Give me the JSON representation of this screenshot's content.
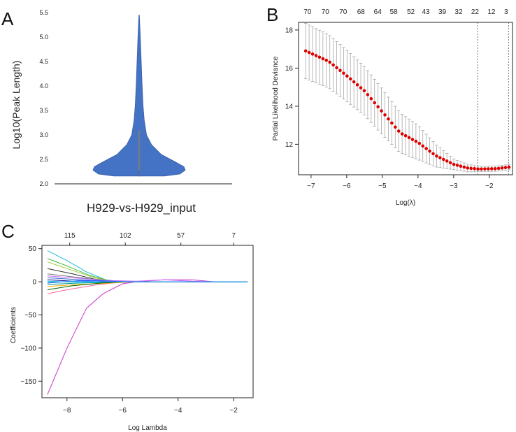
{
  "chart_data": [
    {
      "panel": "A",
      "type": "violin",
      "ylabel": "Log10(Peak Length)",
      "xlabel": "H929-vs-H929_input",
      "ylim": [
        2.0,
        5.5
      ],
      "yticks": [
        "2.0",
        "2.5",
        "3.0",
        "3.5",
        "4.0",
        "4.5",
        "5.0",
        "5.5"
      ],
      "fill_color": "#4472c4",
      "profile": [
        {
          "y": 2.16,
          "w": 0.55
        },
        {
          "y": 2.2,
          "w": 0.88
        },
        {
          "y": 2.28,
          "w": 1.0
        },
        {
          "y": 2.35,
          "w": 0.97
        },
        {
          "y": 2.45,
          "w": 0.78
        },
        {
          "y": 2.6,
          "w": 0.48
        },
        {
          "y": 2.8,
          "w": 0.27
        },
        {
          "y": 3.0,
          "w": 0.16
        },
        {
          "y": 3.3,
          "w": 0.11
        },
        {
          "y": 3.6,
          "w": 0.085
        },
        {
          "y": 4.0,
          "w": 0.065
        },
        {
          "y": 4.5,
          "w": 0.045
        },
        {
          "y": 5.0,
          "w": 0.025
        },
        {
          "y": 5.45,
          "w": 0.004
        }
      ],
      "box": {
        "low": 2.28,
        "high": 3.1
      }
    },
    {
      "panel": "B",
      "type": "errorbar",
      "xlabel": "Log(λ)",
      "ylabel": "Partial Likelihood Deviance",
      "xlim": [
        -7.35,
        -1.35
      ],
      "ylim": [
        10.4,
        18.4
      ],
      "xticks": [
        -7,
        -6,
        -5,
        -4,
        -3,
        -2
      ],
      "xtick_labels": [
        "−7",
        "−6",
        "−5",
        "−4",
        "−3",
        "−2"
      ],
      "yticks": [
        12,
        14,
        16,
        18
      ],
      "ytick_labels": [
        "12",
        "14",
        "16",
        "18"
      ],
      "top_counts": [
        "70",
        "70",
        "70",
        "68",
        "64",
        "58",
        "52",
        "43",
        "39",
        "32",
        "22",
        "12",
        "3"
      ],
      "top_positions": [
        -7.1,
        -6.6,
        -6.1,
        -5.6,
        -5.13,
        -4.68,
        -4.2,
        -3.78,
        -3.32,
        -2.86,
        -2.4,
        -1.94,
        -1.53
      ],
      "vlines": [
        -2.33,
        -1.46
      ],
      "x_range": [
        -7.15,
        -1.45
      ],
      "n_points": 60,
      "curve": [
        {
          "x": -7.15,
          "y": 16.9
        },
        {
          "x": -6.5,
          "y": 16.35
        },
        {
          "x": -6.0,
          "y": 15.6
        },
        {
          "x": -5.5,
          "y": 14.8
        },
        {
          "x": -5.0,
          "y": 13.7
        },
        {
          "x": -4.5,
          "y": 12.6
        },
        {
          "x": -4.0,
          "y": 12.1
        },
        {
          "x": -3.5,
          "y": 11.4
        },
        {
          "x": -3.0,
          "y": 10.95
        },
        {
          "x": -2.6,
          "y": 10.75
        },
        {
          "x": -2.3,
          "y": 10.7
        },
        {
          "x": -1.8,
          "y": 10.72
        },
        {
          "x": -1.45,
          "y": 10.8
        }
      ],
      "err_hi": [
        {
          "x": -7.15,
          "y": 1.45
        },
        {
          "x": -6.0,
          "y": 1.35
        },
        {
          "x": -5.0,
          "y": 1.2
        },
        {
          "x": -4.0,
          "y": 0.9
        },
        {
          "x": -3.0,
          "y": 0.28
        },
        {
          "x": -2.3,
          "y": 0.14
        },
        {
          "x": -1.45,
          "y": 0.14
        }
      ],
      "err_lo": [
        {
          "x": -7.15,
          "y": 1.45
        },
        {
          "x": -6.0,
          "y": 1.35
        },
        {
          "x": -5.0,
          "y": 1.2
        },
        {
          "x": -4.0,
          "y": 0.9
        },
        {
          "x": -3.0,
          "y": 0.28
        },
        {
          "x": -2.3,
          "y": 0.14
        },
        {
          "x": -1.45,
          "y": 0.14
        }
      ],
      "point_color": "#dd0000"
    },
    {
      "panel": "C",
      "type": "line",
      "xlabel": "Log Lambda",
      "ylabel": "Coefficients",
      "xlim": [
        -8.9,
        -1.3
      ],
      "ylim": [
        -175,
        55
      ],
      "xticks": [
        -8,
        -6,
        -4,
        -2
      ],
      "xtick_labels": [
        "−8",
        "−6",
        "−4",
        "−2"
      ],
      "yticks": [
        -150,
        -100,
        -50,
        0,
        50
      ],
      "ytick_labels": [
        "−150",
        "−100",
        "−50",
        "0",
        "50"
      ],
      "top_counts": [
        "115",
        "102",
        "57",
        "7"
      ],
      "top_positions": [
        -7.9,
        -5.9,
        -3.9,
        -2.0
      ],
      "series": [
        {
          "color": "#cc33cc",
          "points": [
            [
              -8.7,
              -170
            ],
            [
              -8.0,
              -100
            ],
            [
              -7.3,
              -40
            ],
            [
              -6.7,
              -18
            ],
            [
              -6.0,
              -3
            ],
            [
              -5.5,
              0
            ],
            [
              -4.5,
              3
            ],
            [
              -3.5,
              3
            ],
            [
              -2.7,
              0
            ],
            [
              -1.5,
              0
            ]
          ]
        },
        {
          "color": "#22bbdd",
          "points": [
            [
              -8.7,
              47
            ],
            [
              -8.0,
              32
            ],
            [
              -7.3,
              15
            ],
            [
              -6.6,
              3
            ],
            [
              -6.0,
              0
            ],
            [
              -1.5,
              0
            ]
          ]
        },
        {
          "color": "#44bb44",
          "points": [
            [
              -8.7,
              35
            ],
            [
              -8.0,
              24
            ],
            [
              -7.2,
              10
            ],
            [
              -6.5,
              2
            ],
            [
              -6.0,
              0
            ],
            [
              -1.5,
              0
            ]
          ]
        },
        {
          "color": "#99cc33",
          "points": [
            [
              -8.7,
              30
            ],
            [
              -8.0,
              20
            ],
            [
              -7.0,
              6
            ],
            [
              -6.3,
              0
            ],
            [
              -1.5,
              0
            ]
          ]
        },
        {
          "color": "#333333",
          "points": [
            [
              -8.7,
              20
            ],
            [
              -7.8,
              12
            ],
            [
              -7.0,
              4
            ],
            [
              -6.2,
              0
            ],
            [
              -1.5,
              0
            ]
          ]
        },
        {
          "color": "#777777",
          "points": [
            [
              -8.7,
              12
            ],
            [
              -7.5,
              6
            ],
            [
              -6.5,
              1
            ],
            [
              -6.0,
              0
            ],
            [
              -1.5,
              0
            ]
          ]
        },
        {
          "color": "#ff6699",
          "points": [
            [
              -8.7,
              -18
            ],
            [
              -8.0,
              -12
            ],
            [
              -7.0,
              -5
            ],
            [
              -6.0,
              0
            ],
            [
              -1.5,
              0
            ]
          ]
        },
        {
          "color": "#cc66ff",
          "points": [
            [
              -8.7,
              9
            ],
            [
              -7.5,
              5
            ],
            [
              -6.5,
              2
            ],
            [
              -5.5,
              1
            ],
            [
              -4.5,
              3
            ],
            [
              -3.5,
              1
            ],
            [
              -2.5,
              0
            ],
            [
              -1.5,
              0
            ]
          ]
        },
        {
          "color": "#ffaa00",
          "points": [
            [
              -8.7,
              -7
            ],
            [
              -7.5,
              -4
            ],
            [
              -6.5,
              -2
            ],
            [
              -5.5,
              0
            ],
            [
              -1.5,
              0
            ]
          ]
        },
        {
          "color": "#3366cc",
          "points": [
            [
              -8.7,
              6
            ],
            [
              -7.5,
              3
            ],
            [
              -6.5,
              1
            ],
            [
              -5.8,
              0
            ],
            [
              -1.5,
              0
            ]
          ]
        },
        {
          "color": "#009999",
          "points": [
            [
              -8.7,
              -4
            ],
            [
              -7.6,
              -2
            ],
            [
              -6.6,
              -1
            ],
            [
              -6.0,
              0
            ],
            [
              -1.5,
              0
            ]
          ]
        },
        {
          "color": "#000099",
          "points": [
            [
              -8.7,
              3
            ],
            [
              -7.8,
              1
            ],
            [
              -6.8,
              0
            ],
            [
              -1.5,
              0
            ]
          ]
        },
        {
          "color": "#2255ff",
          "points": [
            [
              -8.7,
              -2
            ],
            [
              -7.5,
              2
            ],
            [
              -6.5,
              1
            ],
            [
              -5.5,
              0
            ],
            [
              -1.5,
              0
            ]
          ]
        },
        {
          "color": "#006600",
          "points": [
            [
              -8.7,
              -12
            ],
            [
              -7.8,
              -6
            ],
            [
              -6.8,
              -2
            ],
            [
              -6.0,
              0
            ],
            [
              -1.5,
              0
            ]
          ]
        },
        {
          "color": "#00cccc",
          "points": [
            [
              -8.7,
              1
            ],
            [
              -7.5,
              -1
            ],
            [
              -6.5,
              0
            ],
            [
              -1.5,
              0
            ]
          ]
        },
        {
          "color": "#3399ff",
          "points": [
            [
              -8.7,
              -1
            ],
            [
              -7.8,
              1
            ],
            [
              -6.8,
              0
            ],
            [
              -1.5,
              0
            ]
          ]
        }
      ]
    }
  ]
}
